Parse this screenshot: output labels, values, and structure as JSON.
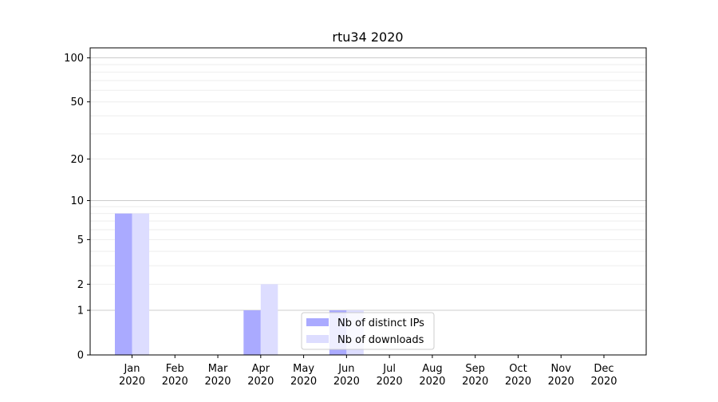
{
  "chart_data": {
    "type": "bar",
    "title": "rtu34 2020",
    "xlabel": "",
    "ylabel": "",
    "yscale": "log(1+y)",
    "ylim": [
      0,
      117
    ],
    "yticks": [
      0,
      1,
      2,
      5,
      10,
      20,
      50,
      100
    ],
    "grid": true,
    "legend_position": "bottom-center",
    "categories": [
      "Jan\n2020",
      "Feb\n2020",
      "Mar\n2020",
      "Apr\n2020",
      "May\n2020",
      "Jun\n2020",
      "Jul\n2020",
      "Aug\n2020",
      "Sep\n2020",
      "Oct\n2020",
      "Nov\n2020",
      "Dec\n2020"
    ],
    "series": [
      {
        "name": "Nb of distinct IPs",
        "color": "#aaaaff",
        "values": [
          8,
          0,
          0,
          1,
          0,
          1,
          0,
          0,
          0,
          0,
          0,
          0
        ]
      },
      {
        "name": "Nb of downloads",
        "color": "#ddddff",
        "values": [
          8,
          0,
          0,
          2,
          0,
          1,
          0,
          0,
          0,
          0,
          0,
          0
        ]
      }
    ]
  }
}
